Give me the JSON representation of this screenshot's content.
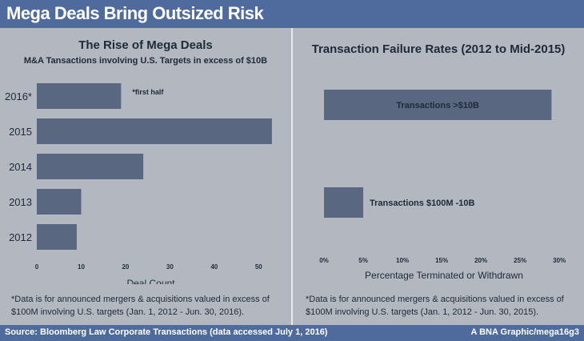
{
  "header": {
    "title": "Mega Deals Bring Outsized Risk"
  },
  "footer": {
    "source": "Source: Bloomberg Law Corporate Transactions (data accessed July 1, 2016)",
    "credit": "A BNA Graphic/mega16g3"
  },
  "colors": {
    "bar": "#5a6780",
    "header": "#4f6a9d",
    "background": "#b3b7bf"
  },
  "left_panel": {
    "title": "The Rise of Mega Deals",
    "subtitle": "M&A Tansactions involving U.S. Targets in excess of $10B",
    "note": "*Data is for announced mergers & acquisitions valued in excess of $100M involving U.S. targets (Jan. 1, 2012 - Jun. 30, 2016)."
  },
  "right_panel": {
    "title": "Transaction Failure Rates (2012 to Mid-2015)",
    "note": "*Data is for announced mergers & acquisitions valued in excess of $100M involving U.S. targets (Jan. 1, 2012 - Jun. 30, 2015)."
  },
  "chart_data": [
    {
      "type": "bar",
      "orientation": "horizontal",
      "title": "The Rise of Mega Deals",
      "subtitle": "M&A Tansactions involving U.S. Targets in excess of $10B",
      "categories": [
        "2016*",
        "2015",
        "2014",
        "2013",
        "2012"
      ],
      "values": [
        19,
        53,
        24,
        10,
        9
      ],
      "xlabel": "Deal Count",
      "ylabel": "",
      "xlim": [
        0,
        55
      ],
      "xticks": [
        "0",
        "10",
        "20",
        "30",
        "40",
        "50"
      ],
      "annotation": "*first half"
    },
    {
      "type": "bar",
      "orientation": "horizontal",
      "title": "Transaction Failure Rates (2012 to Mid-2015)",
      "categories": [
        "Transactions >$10B",
        "Transactions $100M -10B"
      ],
      "values": [
        29,
        5
      ],
      "xlabel": "Percentage Terminated or Withdrawn",
      "xlim": [
        0,
        31
      ],
      "xticks": [
        "0%",
        "5%",
        "10%",
        "15%",
        "20%",
        "25%",
        "30%"
      ]
    }
  ]
}
